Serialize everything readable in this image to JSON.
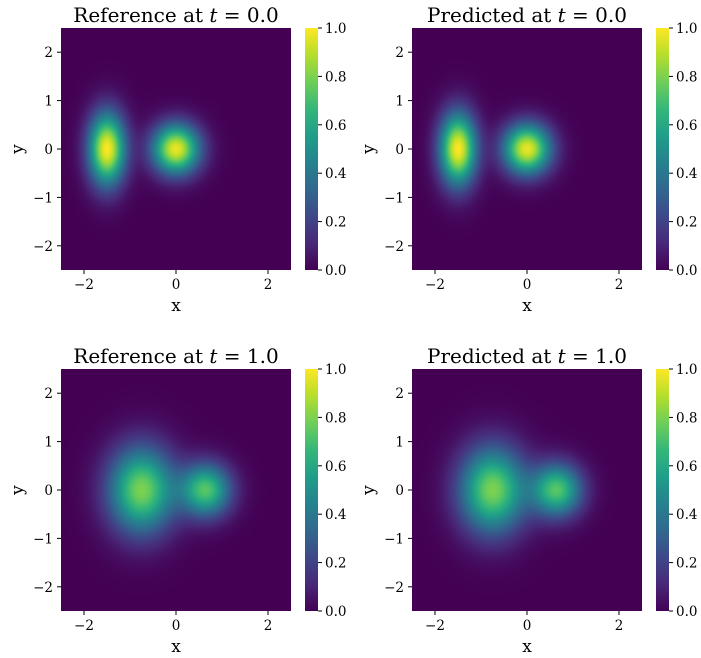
{
  "colors": {
    "colormap": "viridis",
    "viridis_stops": [
      "#440154",
      "#482878",
      "#3e4989",
      "#31688e",
      "#26828e",
      "#1f9e89",
      "#35b779",
      "#6ece58",
      "#b5de2b",
      "#fde725"
    ]
  },
  "chart_data": [
    {
      "type": "heatmap",
      "title_text": "Reference at ",
      "title_var": "t",
      "title_eq": " = 0.0",
      "xlabel": "x",
      "ylabel": "y",
      "xlim": [
        -2.5,
        2.5
      ],
      "ylim": [
        -2.5,
        2.5
      ],
      "xticks": [
        -2,
        0,
        2
      ],
      "yticks": [
        -2,
        -1,
        0,
        1,
        2
      ],
      "colorbar": {
        "range": [
          0,
          1
        ],
        "ticks": [
          0.0,
          0.2,
          0.4,
          0.6,
          0.8,
          1.0
        ],
        "tick_labels": [
          "0.0",
          "0.2",
          "0.4",
          "0.6",
          "0.8",
          "1.0"
        ]
      },
      "peaks": [
        {
          "x": -1.5,
          "y": 0,
          "amplitude": 1.0,
          "sigma_x": 0.28,
          "sigma_y": 0.52
        },
        {
          "x": 0.0,
          "y": 0,
          "amplitude": 0.97,
          "sigma_x": 0.36,
          "sigma_y": 0.36
        }
      ]
    },
    {
      "type": "heatmap",
      "title_text": "Predicted at ",
      "title_var": "t",
      "title_eq": " = 0.0",
      "xlabel": "x",
      "ylabel": "y",
      "xlim": [
        -2.5,
        2.5
      ],
      "ylim": [
        -2.5,
        2.5
      ],
      "xticks": [
        -2,
        0,
        2
      ],
      "yticks": [
        -2,
        -1,
        0,
        1,
        2
      ],
      "colorbar": {
        "range": [
          0,
          1
        ],
        "ticks": [
          0.0,
          0.2,
          0.4,
          0.6,
          0.8,
          1.0
        ],
        "tick_labels": [
          "0.0",
          "0.2",
          "0.4",
          "0.6",
          "0.8",
          "1.0"
        ]
      },
      "peaks": [
        {
          "x": -1.5,
          "y": 0,
          "amplitude": 1.0,
          "sigma_x": 0.28,
          "sigma_y": 0.52
        },
        {
          "x": 0.0,
          "y": 0,
          "amplitude": 0.97,
          "sigma_x": 0.36,
          "sigma_y": 0.36
        }
      ]
    },
    {
      "type": "heatmap",
      "title_text": "Reference at ",
      "title_var": "t",
      "title_eq": " = 1.0",
      "xlabel": "x",
      "ylabel": "y",
      "xlim": [
        -2.5,
        2.5
      ],
      "ylim": [
        -2.5,
        2.5
      ],
      "xticks": [
        -2,
        0,
        2
      ],
      "yticks": [
        -2,
        -1,
        0,
        1,
        2
      ],
      "colorbar": {
        "range": [
          0,
          1
        ],
        "ticks": [
          0.0,
          0.2,
          0.4,
          0.6,
          0.8,
          1.0
        ],
        "tick_labels": [
          "0.0",
          "0.2",
          "0.4",
          "0.6",
          "0.8",
          "1.0"
        ]
      },
      "peaks": [
        {
          "x": -0.75,
          "y": 0,
          "amplitude": 0.8,
          "sigma_x": 0.5,
          "sigma_y": 0.62
        },
        {
          "x": 0.65,
          "y": 0,
          "amplitude": 0.72,
          "sigma_x": 0.38,
          "sigma_y": 0.38
        }
      ]
    },
    {
      "type": "heatmap",
      "title_text": "Predicted at ",
      "title_var": "t",
      "title_eq": " = 1.0",
      "xlabel": "x",
      "ylabel": "y",
      "xlim": [
        -2.5,
        2.5
      ],
      "ylim": [
        -2.5,
        2.5
      ],
      "xticks": [
        -2,
        0,
        2
      ],
      "yticks": [
        -2,
        -1,
        0,
        1,
        2
      ],
      "colorbar": {
        "range": [
          0,
          1
        ],
        "ticks": [
          0.0,
          0.2,
          0.4,
          0.6,
          0.8,
          1.0
        ],
        "tick_labels": [
          "0.0",
          "0.2",
          "0.4",
          "0.6",
          "0.8",
          "1.0"
        ]
      },
      "peaks": [
        {
          "x": -0.75,
          "y": 0,
          "amplitude": 0.8,
          "sigma_x": 0.5,
          "sigma_y": 0.62
        },
        {
          "x": 0.65,
          "y": 0,
          "amplitude": 0.72,
          "sigma_x": 0.38,
          "sigma_y": 0.38
        }
      ]
    }
  ]
}
